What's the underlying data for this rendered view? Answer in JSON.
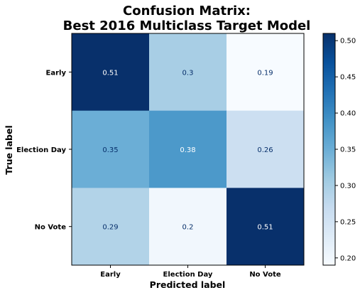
{
  "chart_data": {
    "type": "heatmap",
    "title": "Confusion Matrix:",
    "subtitle": "Best 2016 Multiclass Target Model",
    "xlabel": "Predicted label",
    "ylabel": "True label",
    "x_categories": [
      "Early",
      "Election Day",
      "No Vote"
    ],
    "y_categories": [
      "Early",
      "Election Day",
      "No Vote"
    ],
    "values": [
      [
        "0.51",
        "0.3",
        "0.19"
      ],
      [
        "0.35",
        "0.38",
        "0.26"
      ],
      [
        "0.29",
        "0.2",
        "0.51"
      ]
    ],
    "colormap": "Blues",
    "colorbar": {
      "range": [
        0.19,
        0.51
      ],
      "ticks": [
        "0.20",
        "0.25",
        "0.30",
        "0.35",
        "0.40",
        "0.45",
        "0.50"
      ]
    }
  }
}
